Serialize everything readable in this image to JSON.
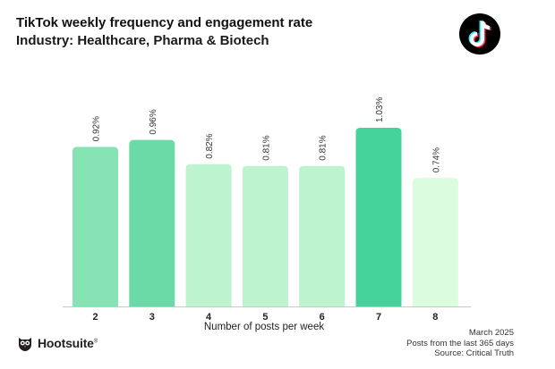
{
  "title": "TikTok weekly frequency and engagement rate",
  "subtitle": "Industry: Healthcare, Pharma & Biotech",
  "footer": {
    "date": "March 2025",
    "note": "Posts from the last 365 days",
    "source": "Source: Critical Truth"
  },
  "brand": {
    "name": "Hootsuite",
    "mark": "®"
  },
  "icons": {
    "tiktok": "tiktok-logo-icon",
    "hootsuite": "hootsuite-owl-icon"
  },
  "chart_data": {
    "type": "bar",
    "categories": [
      "2",
      "3",
      "4",
      "5",
      "6",
      "7",
      "8"
    ],
    "values": [
      0.92,
      0.96,
      0.82,
      0.81,
      0.81,
      1.03,
      0.74
    ],
    "value_labels": [
      "0.92%",
      "0.96%",
      "0.82%",
      "0.81%",
      "0.81%",
      "1.03%",
      "0.74%"
    ],
    "colors": [
      "#86e3b4",
      "#6bdaa6",
      "#bdf3cf",
      "#bdf3cf",
      "#bdf3cf",
      "#45d39b",
      "#dbfcde"
    ],
    "title": "TikTok weekly frequency and engagement rate",
    "xlabel": "Number of posts per week",
    "ylabel": "",
    "ylim": [
      0,
      1.1
    ],
    "grid": false
  }
}
